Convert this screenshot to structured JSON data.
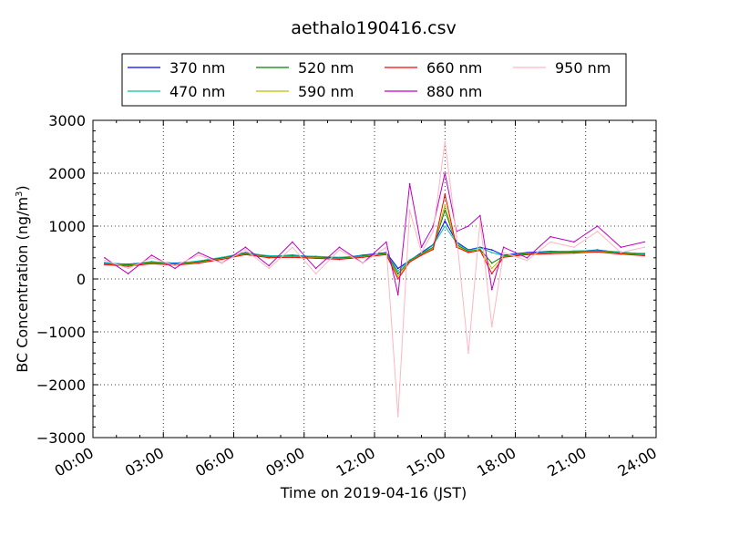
{
  "chart_data": {
    "type": "line",
    "title": "aethalo190416.csv",
    "xlabel": "Time on 2019-04-16 (JST)",
    "ylabel": "BC Concentration (ng/m³)",
    "ylabel_main": "BC Concentration (ng/m",
    "ylabel_sup": "3",
    "ylabel_end": ")",
    "xlim": [
      "00:00",
      "24:00"
    ],
    "ylim": [
      -3000,
      3000
    ],
    "xticks": [
      "00:00",
      "03:00",
      "06:00",
      "09:00",
      "12:00",
      "15:00",
      "18:00",
      "21:00",
      "24:00"
    ],
    "yticks": [
      "3000",
      "2000",
      "1000",
      "0",
      "−1000",
      "−2000",
      "−3000"
    ],
    "grid": true,
    "legend_position": "top",
    "x_hours": [
      0.5,
      1.5,
      2.5,
      3.5,
      4.5,
      5.5,
      6.5,
      7.5,
      8.5,
      9.5,
      10.5,
      11.5,
      12.5,
      13.0,
      13.5,
      14.0,
      14.5,
      15.0,
      15.5,
      16.0,
      16.5,
      17.0,
      17.5,
      18.5,
      19.5,
      20.5,
      21.5,
      22.5,
      23.5
    ],
    "series": [
      {
        "name": "370 nm",
        "color": "#0000ff",
        "values": [
          300,
          280,
          320,
          300,
          330,
          400,
          500,
          430,
          450,
          420,
          400,
          450,
          500,
          200,
          350,
          500,
          650,
          1100,
          700,
          550,
          600,
          550,
          450,
          500,
          520,
          520,
          550,
          500,
          480
        ]
      },
      {
        "name": "470 nm",
        "color": "#00c0a0",
        "values": [
          310,
          270,
          330,
          290,
          340,
          410,
          490,
          440,
          440,
          430,
          410,
          440,
          490,
          150,
          360,
          480,
          640,
          1000,
          680,
          540,
          590,
          500,
          440,
          490,
          510,
          530,
          540,
          510,
          470
        ]
      },
      {
        "name": "520 nm",
        "color": "#008000",
        "values": [
          290,
          260,
          310,
          280,
          320,
          390,
          480,
          420,
          430,
          410,
          390,
          430,
          480,
          100,
          340,
          470,
          600,
          1300,
          650,
          520,
          560,
          300,
          430,
          480,
          500,
          510,
          530,
          490,
          460
        ]
      },
      {
        "name": "590 nm",
        "color": "#bfbf00",
        "values": [
          280,
          250,
          300,
          270,
          310,
          380,
          470,
          410,
          420,
          400,
          380,
          420,
          470,
          50,
          330,
          460,
          580,
          1400,
          620,
          510,
          550,
          200,
          420,
          470,
          490,
          500,
          520,
          480,
          450
        ]
      },
      {
        "name": "660 nm",
        "color": "#ff0000",
        "values": [
          270,
          240,
          290,
          260,
          300,
          370,
          460,
          400,
          410,
          390,
          370,
          410,
          460,
          0,
          320,
          450,
          560,
          1600,
          600,
          500,
          540,
          100,
          410,
          460,
          480,
          490,
          510,
          470,
          440
        ]
      },
      {
        "name": "880 nm",
        "color": "#bf00bf",
        "values": [
          400,
          100,
          450,
          200,
          500,
          300,
          600,
          250,
          700,
          200,
          600,
          300,
          700,
          -300,
          1800,
          600,
          1000,
          2000,
          900,
          1000,
          1200,
          -200,
          600,
          400,
          800,
          700,
          1000,
          600,
          700
        ]
      },
      {
        "name": "950 nm",
        "color": "#ffb6c1",
        "values": [
          350,
          200,
          400,
          250,
          450,
          300,
          550,
          200,
          600,
          100,
          550,
          300,
          600,
          -2600,
          1300,
          500,
          900,
          2600,
          800,
          -1400,
          1100,
          -900,
          500,
          350,
          700,
          600,
          900,
          500,
          600
        ]
      }
    ]
  }
}
